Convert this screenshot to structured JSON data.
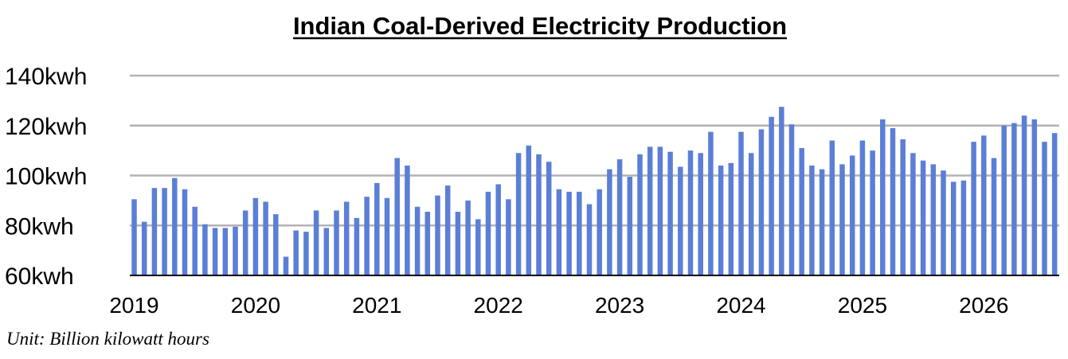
{
  "chart_data": {
    "type": "bar",
    "title": "Indian Coal-Derived Electricity Production",
    "unit_note": "Unit: Billion kilowatt hours",
    "ylim": [
      60,
      140
    ],
    "yticks": [
      60,
      80,
      100,
      120,
      140
    ],
    "ytick_labels": [
      "60kwh",
      "80kwh",
      "100kwh",
      "120kwh",
      "140kwh"
    ],
    "xtick_labels": [
      "2019",
      "2020",
      "2021",
      "2022",
      "2023",
      "2024",
      "2025",
      "2026"
    ],
    "grid": true,
    "bar_color": "#5B7FD6",
    "series": [
      {
        "values": [
          90.5,
          81.5,
          95,
          95,
          99,
          94.5,
          87.5,
          80.5,
          79,
          79,
          79.5,
          86,
          91,
          89.5,
          84.5,
          67.5,
          78,
          77.5,
          86,
          79,
          86,
          89.5,
          83,
          91.5,
          97,
          91,
          107,
          104,
          87.5,
          85.5,
          92,
          96,
          85.5,
          90,
          82.5,
          93.5,
          96.5,
          90.5,
          109,
          112,
          108.5,
          105.5,
          94.5,
          93.5,
          93.5,
          88.5,
          94.5,
          102.5,
          106.5,
          99.5,
          108.5,
          111.5,
          111.5,
          109.5,
          103.5,
          110,
          109,
          117.5,
          104,
          105,
          117.5,
          109,
          118.5,
          123.5,
          127.5,
          120.5,
          111,
          104,
          102.5,
          114,
          104.5,
          108,
          114,
          110,
          122.5,
          119,
          114.5,
          109,
          106,
          104.5,
          102,
          97.5,
          98,
          113.5,
          116,
          107,
          120,
          121,
          124,
          122.5,
          113.5,
          117
        ]
      }
    ]
  }
}
